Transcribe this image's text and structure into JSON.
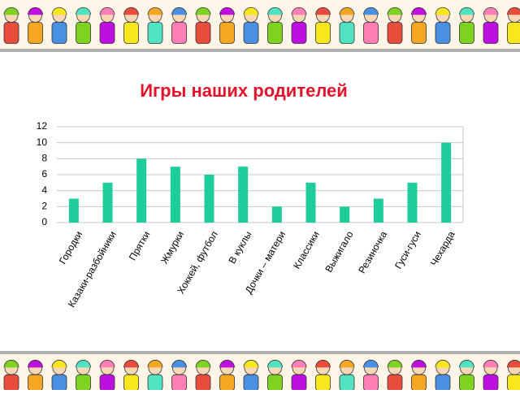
{
  "chart_data": {
    "type": "bar",
    "title": "Игры наших  родителей",
    "categories": [
      "Городки",
      "Казаки-разбойники",
      "Прятки",
      "Жмурки",
      "Хоккей, футбол",
      "В куклы",
      "Дочки – матери",
      "Классики",
      "Выжигало",
      "Резиночка",
      "Гуси-гуси",
      "Чехарда"
    ],
    "values": [
      3,
      5,
      8,
      7,
      6,
      7,
      2,
      5,
      2,
      3,
      5,
      10
    ],
    "color": "#1fcc9c",
    "ylim": [
      0,
      12
    ],
    "yticks": [
      0,
      2,
      4,
      6,
      8,
      10,
      12
    ],
    "grid": true
  }
}
